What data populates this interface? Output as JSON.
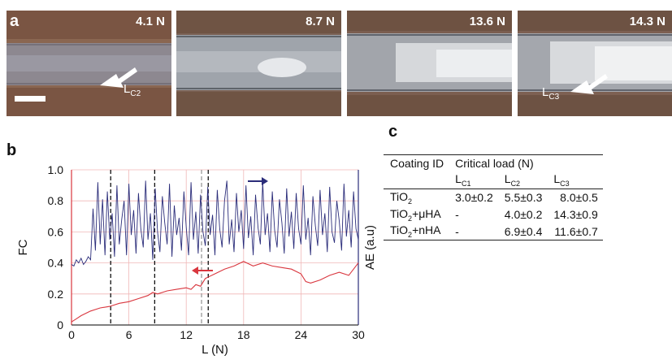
{
  "panel_a": {
    "label": "a",
    "images": [
      {
        "load": "4.1 N",
        "annotation": {
          "main": "L",
          "sub": "C2"
        }
      },
      {
        "load": "8.7 N",
        "annotation": null
      },
      {
        "load": "13.6 N",
        "annotation": null
      },
      {
        "load": "14.3 N",
        "annotation": {
          "main": "L",
          "sub": "C3"
        }
      }
    ]
  },
  "panel_b": {
    "label": "b"
  },
  "panel_c": {
    "label": "c",
    "header_id": "Coating ID",
    "header_group": "Critical load (N)",
    "columns": [
      {
        "main": "L",
        "sub": "C1"
      },
      {
        "main": "L",
        "sub": "C2"
      },
      {
        "main": "L",
        "sub": "C3"
      }
    ],
    "rows": [
      {
        "id_main": "TiO",
        "id_sub": "2",
        "id_rest": "",
        "values": [
          "3.0±0.2",
          "5.5±0.3",
          "8.0±0.5"
        ]
      },
      {
        "id_main": "TiO",
        "id_sub": "2",
        "id_rest": "+μHA",
        "values": [
          "-",
          "4.0±0.2",
          "14.3±0.9"
        ]
      },
      {
        "id_main": "TiO",
        "id_sub": "2",
        "id_rest": "+nHA",
        "values": [
          "-",
          "6.9±0.4",
          "11.6±0.7"
        ]
      }
    ]
  },
  "chart_data": {
    "type": "line",
    "xlabel": "L (N)",
    "ylabel": "FC",
    "y2label": "AE (a.u)",
    "xlim": [
      0,
      30
    ],
    "ylim": [
      0,
      1.0
    ],
    "xticks": [
      0,
      6,
      12,
      18,
      24,
      30
    ],
    "yticks": [
      0,
      0.2,
      0.4,
      0.6,
      0.8,
      1.0
    ],
    "grid": true,
    "vlines": [
      4.1,
      8.7,
      13.6,
      14.3
    ],
    "series": [
      {
        "color": "#2b2d7a",
        "axis": "right",
        "x": [
          0,
          0.25,
          0.5,
          0.75,
          1,
          1.25,
          1.5,
          1.75,
          2,
          2.25,
          2.5,
          2.75,
          3,
          3.25,
          3.5,
          3.75,
          4,
          4.25,
          4.5,
          4.75,
          5,
          5.25,
          5.5,
          5.75,
          6,
          6.25,
          6.5,
          6.75,
          7,
          7.25,
          7.5,
          7.75,
          8,
          8.25,
          8.5,
          8.75,
          9,
          9.25,
          9.5,
          9.75,
          10,
          10.25,
          10.5,
          10.75,
          11,
          11.25,
          11.5,
          11.75,
          12,
          12.25,
          12.5,
          12.75,
          13,
          13.25,
          13.5,
          13.75,
          14,
          14.25,
          14.5,
          14.75,
          15,
          15.25,
          15.5,
          15.75,
          16,
          16.25,
          16.5,
          16.75,
          17,
          17.25,
          17.5,
          17.75,
          18,
          18.25,
          18.5,
          18.75,
          19,
          19.25,
          19.5,
          19.75,
          20,
          20.25,
          20.5,
          20.75,
          21,
          21.25,
          21.5,
          21.75,
          22,
          22.25,
          22.5,
          22.75,
          23,
          23.25,
          23.5,
          23.75,
          24,
          24.25,
          24.5,
          24.75,
          25,
          25.25,
          25.5,
          25.75,
          26,
          26.25,
          26.5,
          26.75,
          27,
          27.25,
          27.5,
          27.75,
          28,
          28.25,
          28.5,
          28.75,
          29,
          29.25,
          29.5,
          29.75,
          30
        ],
        "values": [
          0.39,
          0.38,
          0.42,
          0.4,
          0.43,
          0.39,
          0.41,
          0.44,
          0.42,
          0.75,
          0.48,
          0.92,
          0.52,
          0.81,
          0.45,
          0.86,
          0.55,
          0.72,
          0.44,
          0.9,
          0.52,
          0.68,
          0.8,
          0.45,
          0.91,
          0.58,
          0.74,
          0.46,
          0.85,
          0.62,
          0.5,
          0.93,
          0.55,
          0.72,
          0.42,
          0.88,
          0.6,
          0.47,
          0.83,
          0.66,
          0.52,
          0.91,
          0.44,
          0.77,
          0.58,
          0.69,
          0.48,
          0.86,
          0.63,
          0.45,
          0.92,
          0.55,
          0.73,
          0.46,
          0.84,
          0.6,
          0.51,
          0.89,
          0.58,
          0.71,
          0.45,
          0.87,
          0.62,
          0.5,
          0.8,
          0.93,
          0.52,
          0.68,
          0.47,
          0.85,
          0.6,
          0.74,
          0.49,
          0.9,
          0.56,
          0.7,
          0.45,
          0.84,
          0.63,
          0.52,
          0.92,
          0.58,
          0.72,
          0.47,
          0.86,
          0.61,
          0.5,
          0.81,
          0.66,
          0.46,
          0.88,
          0.57,
          0.73,
          0.49,
          0.85,
          0.62,
          0.52,
          0.9,
          0.55,
          0.69,
          0.45,
          0.83,
          0.64,
          0.51,
          0.87,
          0.58,
          0.72,
          0.47,
          0.89,
          0.6,
          0.53,
          0.8,
          0.67,
          0.48,
          0.91,
          0.57,
          0.74,
          0.5,
          0.86,
          0.62,
          0.55
        ]
      },
      {
        "color": "#d9363e",
        "axis": "left",
        "x": [
          0,
          0.5,
          1,
          2,
          3,
          4,
          5,
          6,
          7,
          8,
          8.5,
          9,
          10,
          11,
          12,
          12.5,
          13,
          13.5,
          14,
          15,
          16,
          17,
          18,
          19,
          20,
          21,
          22,
          23,
          24,
          24.5,
          25,
          26,
          27,
          28,
          29,
          30
        ],
        "values": [
          0.02,
          0.04,
          0.06,
          0.09,
          0.11,
          0.12,
          0.14,
          0.15,
          0.17,
          0.19,
          0.21,
          0.2,
          0.22,
          0.23,
          0.24,
          0.23,
          0.26,
          0.25,
          0.3,
          0.33,
          0.36,
          0.38,
          0.41,
          0.38,
          0.4,
          0.38,
          0.37,
          0.36,
          0.33,
          0.28,
          0.27,
          0.29,
          0.32,
          0.34,
          0.32,
          0.4
        ]
      }
    ]
  }
}
